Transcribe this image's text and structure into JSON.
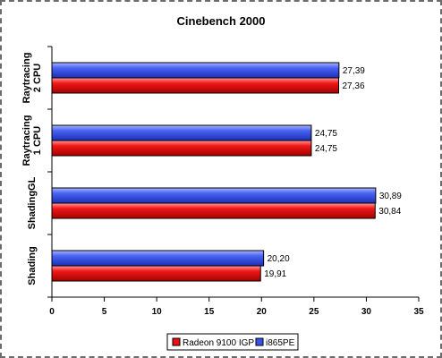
{
  "chart_data": {
    "type": "bar",
    "orientation": "horizontal",
    "title": "Cinebench 2000",
    "categories": [
      "Raytracing\n2 CPU",
      "Raytracing\n1 CPU",
      "ShadingGL",
      "Shading"
    ],
    "series": [
      {
        "name": "i865PE",
        "color": "#3355ee",
        "values": [
          27.39,
          24.75,
          30.89,
          20.2
        ],
        "labels": [
          "27,39",
          "24,75",
          "30,89",
          "20,20"
        ]
      },
      {
        "name": "Radeon 9100 IGP",
        "color": "#ee1111",
        "values": [
          27.36,
          24.75,
          30.84,
          19.91
        ],
        "labels": [
          "27,36",
          "24,75",
          "30,84",
          "19,91"
        ]
      }
    ],
    "xlim": [
      0,
      35
    ],
    "xticks": [
      0,
      5,
      10,
      15,
      20,
      25,
      30,
      35
    ],
    "xtick_labels": [
      "0",
      "5",
      "10",
      "15",
      "20",
      "25",
      "30",
      "35"
    ],
    "legend": {
      "position": "bottom-right",
      "order": [
        "Radeon 9100 IGP",
        "i865PE"
      ]
    },
    "grid": false,
    "xlabel": "",
    "ylabel": ""
  }
}
